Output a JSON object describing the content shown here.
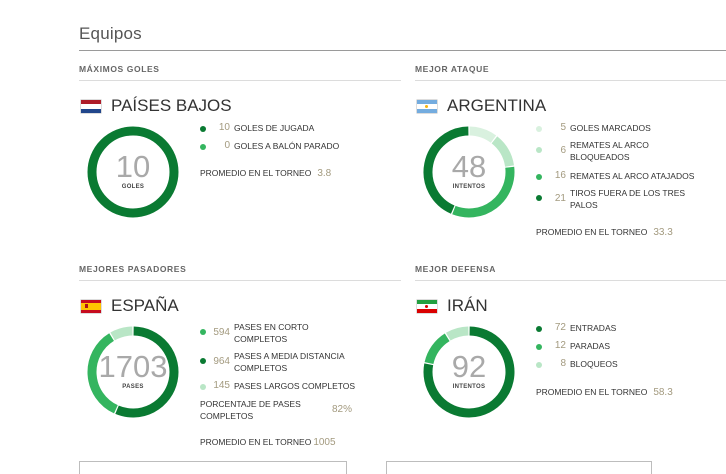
{
  "section": {
    "title": "Equipos"
  },
  "colors": {
    "dark": "#0a7a32",
    "mid": "#34b55f",
    "light": "#b9e6c6",
    "value": "#a39a7f"
  },
  "panels": [
    {
      "label": "MÁXIMOS GOLES",
      "team": "PAÍSES BAJOS",
      "flag": "netherlands-flag-icon",
      "donut": {
        "value": "10",
        "unit": "GOLES",
        "segments": [
          {
            "value": 10,
            "color": "#0a7a32"
          },
          {
            "value": 0,
            "color": "#34b55f"
          }
        ]
      },
      "stats": [
        {
          "value": "10",
          "label": "GOLES DE JUGADA",
          "color": "#0a7a32"
        },
        {
          "value": "0",
          "label": "GOLES A BALÓN PARADO",
          "color": "#34b55f"
        }
      ],
      "average": {
        "label": "PROMEDIO EN EL TORNEO",
        "value": "3.8"
      }
    },
    {
      "label": "MEJOR ATAQUE",
      "team": "ARGENTINA",
      "flag": "argentina-flag-icon",
      "donut": {
        "value": "48",
        "unit": "INTENTOS",
        "segments": [
          {
            "value": 5,
            "color": "#d9f1df"
          },
          {
            "value": 6,
            "color": "#b9e6c6"
          },
          {
            "value": 16,
            "color": "#34b55f"
          },
          {
            "value": 21,
            "color": "#0a7a32"
          }
        ]
      },
      "stats": [
        {
          "value": "5",
          "label": "GOLES MARCADOS",
          "color": "#d9f1df"
        },
        {
          "value": "6",
          "label": "REMATES AL ARCO BLOQUEADOS",
          "color": "#b9e6c6"
        },
        {
          "value": "16",
          "label": "REMATES AL ARCO ATAJADOS",
          "color": "#34b55f"
        },
        {
          "value": "21",
          "label": "TIROS FUERA DE LOS TRES PALOS",
          "color": "#0a7a32"
        }
      ],
      "average": {
        "label": "PROMEDIO EN EL TORNEO",
        "value": "33.3"
      }
    },
    {
      "label": "MEJORES PASADORES",
      "team": "ESPAÑA",
      "flag": "spain-flag-icon",
      "donut": {
        "value": "1703",
        "unit": "PASES",
        "segments": [
          {
            "value": 964,
            "color": "#0a7a32"
          },
          {
            "value": 594,
            "color": "#34b55f"
          },
          {
            "value": 145,
            "color": "#b9e6c6"
          }
        ]
      },
      "stats": [
        {
          "value": "594",
          "label": "PASES EN CORTO COMPLETOS",
          "color": "#34b55f"
        },
        {
          "value": "964",
          "label": "PASES A MEDIA DISTANCIA COMPLETOS",
          "color": "#0a7a32"
        },
        {
          "value": "145",
          "label": "PASES LARGOS COMPLETOS",
          "color": "#b9e6c6"
        }
      ],
      "percent": {
        "label": "PORCENTAJE DE PASES COMPLETOS",
        "value": "82%"
      },
      "average": {
        "label": "PROMEDIO EN EL TORNEO",
        "value": "1005"
      }
    },
    {
      "label": "MEJOR DEFENSA",
      "team": "IRÁN",
      "flag": "iran-flag-icon",
      "donut": {
        "value": "92",
        "unit": "INTENTOS",
        "segments": [
          {
            "value": 72,
            "color": "#0a7a32"
          },
          {
            "value": 12,
            "color": "#34b55f"
          },
          {
            "value": 8,
            "color": "#b9e6c6"
          }
        ]
      },
      "stats": [
        {
          "value": "72",
          "label": "ENTRADAS",
          "color": "#0a7a32"
        },
        {
          "value": "12",
          "label": "PARADAS",
          "color": "#34b55f"
        },
        {
          "value": "8",
          "label": "BLOQUEOS",
          "color": "#b9e6c6"
        }
      ],
      "average": {
        "label": "PROMEDIO EN EL TORNEO",
        "value": "58.3"
      }
    }
  ]
}
